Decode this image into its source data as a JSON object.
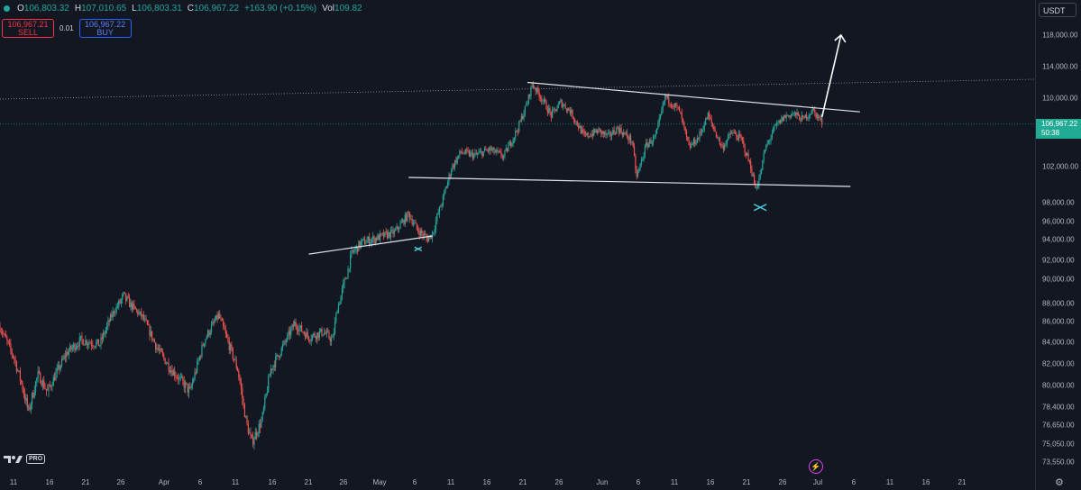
{
  "legend": {
    "open_label": "O",
    "open": "106,803.32",
    "high_label": "H",
    "high": "107,010.65",
    "low_label": "L",
    "low": "106,803.31",
    "close_label": "C",
    "close": "106,967.22",
    "change": "+163.90 (+0.15%)",
    "vol_label": "Vol",
    "vol": "109.82"
  },
  "trade": {
    "sell_price": "106,967.21",
    "sell_label": "SELL",
    "qty": "0.01",
    "buy_price": "106,967.22",
    "buy_label": "BUY"
  },
  "currency": "USDT",
  "current_price": {
    "price": "106,967.22",
    "countdown": "50:38",
    "value": 106967.22
  },
  "logo": {
    "pro": "PRO"
  },
  "colors": {
    "up": "#26a69a",
    "down": "#ef5350",
    "background": "#131722",
    "accent_marker": "#4dd0e1"
  },
  "chart_data": {
    "type": "candlestick",
    "y_ticks": [
      {
        "label": "118,000.00",
        "v": 118000
      },
      {
        "label": "114,000.00",
        "v": 114000
      },
      {
        "label": "110,000.00",
        "v": 110000
      },
      {
        "label": "102,000.00",
        "v": 102000
      },
      {
        "label": "98,000.00",
        "v": 98000
      },
      {
        "label": "96,000.00",
        "v": 96000
      },
      {
        "label": "94,000.00",
        "v": 94000
      },
      {
        "label": "92,000.00",
        "v": 92000
      },
      {
        "label": "90,000.00",
        "v": 90000
      },
      {
        "label": "88,000.00",
        "v": 88000
      },
      {
        "label": "86,000.00",
        "v": 86000
      },
      {
        "label": "84,000.00",
        "v": 84000
      },
      {
        "label": "82,000.00",
        "v": 82000
      },
      {
        "label": "80,000.00",
        "v": 80000
      },
      {
        "label": "78,400.00",
        "v": 78400
      },
      {
        "label": "76,650.00",
        "v": 76650
      },
      {
        "label": "75,050.00",
        "v": 75050
      },
      {
        "label": "73,550.00",
        "v": 73550
      }
    ],
    "x_ticks": [
      "11",
      "16",
      "21",
      "26",
      "Apr",
      "6",
      "11",
      "16",
      "21",
      "26",
      "May",
      "6",
      "11",
      "16",
      "21",
      "26",
      "Jun",
      "6",
      "11",
      "16",
      "21",
      "26",
      "Jul",
      "6",
      "11",
      "16",
      "21"
    ],
    "price_path": [
      [
        0,
        85500
      ],
      [
        3,
        82500
      ],
      [
        6,
        78000
      ],
      [
        8,
        81000
      ],
      [
        10,
        79500
      ],
      [
        14,
        83000
      ],
      [
        17,
        84200
      ],
      [
        21,
        83800
      ],
      [
        24,
        87200
      ],
      [
        26,
        88600
      ],
      [
        30,
        86500
      ],
      [
        33,
        83500
      ],
      [
        36,
        81500
      ],
      [
        40,
        79500
      ],
      [
        43,
        84200
      ],
      [
        46,
        86700
      ],
      [
        48,
        84000
      ],
      [
        50,
        81500
      ],
      [
        52,
        76600
      ],
      [
        53,
        75200
      ],
      [
        55,
        77000
      ],
      [
        57,
        81500
      ],
      [
        60,
        84000
      ],
      [
        62,
        85800
      ],
      [
        65,
        84500
      ],
      [
        68,
        85000
      ],
      [
        70,
        84200
      ],
      [
        71,
        87500
      ],
      [
        73,
        90500
      ],
      [
        74,
        92600
      ],
      [
        76,
        93700
      ],
      [
        80,
        94300
      ],
      [
        83,
        94800
      ],
      [
        86,
        96800
      ],
      [
        88,
        95000
      ],
      [
        90,
        94100
      ],
      [
        91,
        94600
      ],
      [
        92,
        96500
      ],
      [
        93,
        98000
      ],
      [
        95,
        101800
      ],
      [
        97,
        103700
      ],
      [
        100,
        103300
      ],
      [
        103,
        104000
      ],
      [
        106,
        103200
      ],
      [
        109,
        106500
      ],
      [
        111,
        109500
      ],
      [
        112,
        111800
      ],
      [
        114,
        110000
      ],
      [
        116,
        108000
      ],
      [
        118,
        109500
      ],
      [
        120,
        108500
      ],
      [
        123,
        105500
      ],
      [
        126,
        106200
      ],
      [
        128,
        105500
      ],
      [
        130,
        106500
      ],
      [
        133,
        105000
      ],
      [
        134,
        100800
      ],
      [
        136,
        104500
      ],
      [
        138,
        105500
      ],
      [
        140,
        110200
      ],
      [
        143,
        108500
      ],
      [
        145,
        104200
      ],
      [
        147,
        105400
      ],
      [
        149,
        108000
      ],
      [
        152,
        104200
      ],
      [
        154,
        106000
      ],
      [
        156,
        105200
      ],
      [
        158,
        102000
      ],
      [
        159,
        99600
      ],
      [
        160,
        101000
      ],
      [
        161,
        104000
      ],
      [
        163,
        106500
      ],
      [
        165,
        107800
      ],
      [
        167,
        108200
      ],
      [
        169,
        107500
      ],
      [
        171,
        108600
      ],
      [
        173,
        107200
      ]
    ],
    "annotations": {
      "horizontal_line": 110800,
      "upper_trendline": [
        [
          111,
          112000
        ],
        [
          181,
          108400
        ]
      ],
      "lower_trendline": [
        [
          86,
          100800
        ],
        [
          179,
          99800
        ]
      ],
      "lower_trendline_2": [
        [
          65,
          92600
        ],
        [
          91,
          94400
        ]
      ],
      "arrow": [
        [
          173,
          107800
        ],
        [
          177,
          118000
        ]
      ],
      "cross_markers": [
        [
          88,
          93100
        ],
        [
          160,
          97500
        ]
      ]
    }
  }
}
